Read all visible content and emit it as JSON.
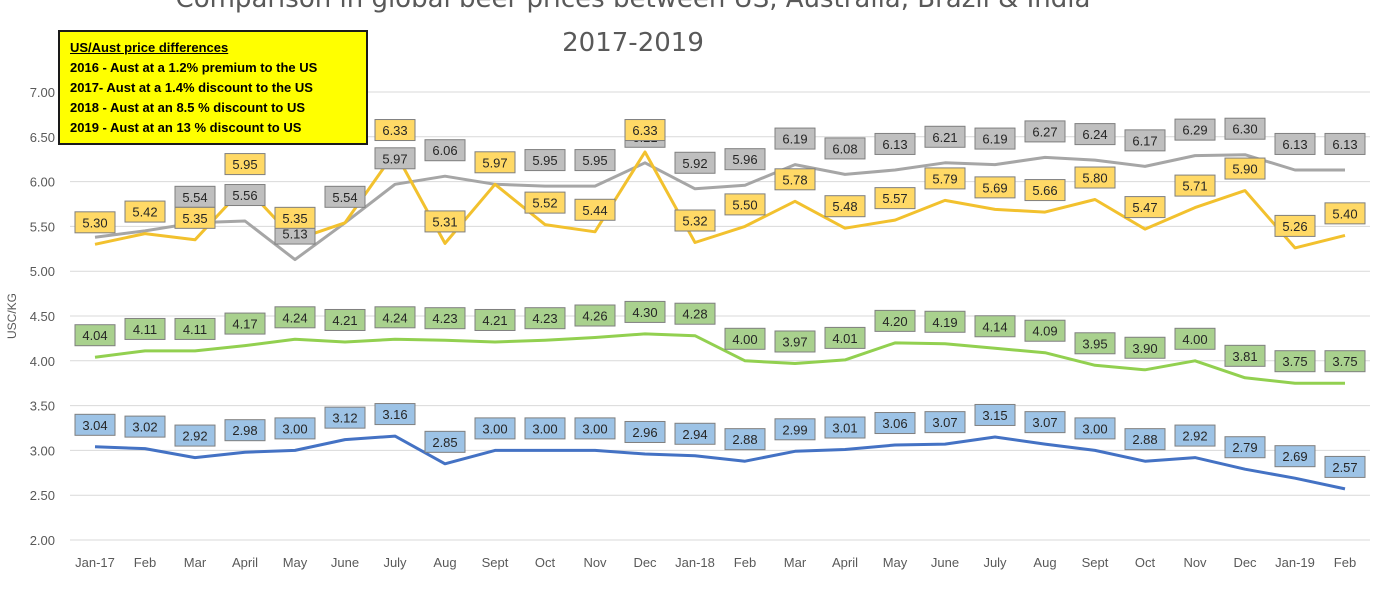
{
  "chart_data": {
    "type": "line",
    "title": "Comparison in global beer prices between US, Australia, Brazil & India",
    "subtitle": "2017-2019",
    "xlabel": "",
    "ylabel": "USC/KG",
    "ylim": [
      2.0,
      7.0
    ],
    "yticks": [
      "7.00",
      "6.50",
      "6.00",
      "5.50",
      "5.00",
      "4.50",
      "4.00",
      "3.50",
      "3.00",
      "2.50",
      "2.00"
    ],
    "grid": true,
    "categories": [
      "Jan-17",
      "Feb",
      "Mar",
      "April",
      "May",
      "June",
      "July",
      "Aug",
      "Sept",
      "Oct",
      "Nov",
      "Dec",
      "Jan-18",
      "Feb",
      "Mar",
      "April",
      "May",
      "June",
      "July",
      "Aug",
      "Sept",
      "Oct",
      "Nov",
      "Dec",
      "Jan-19",
      "Feb"
    ],
    "series": [
      {
        "color": "#a6a6a6",
        "label_fill": "#bfbfbf",
        "values": [
          5.38,
          5.45,
          5.54,
          5.56,
          5.13,
          5.54,
          5.97,
          6.06,
          5.97,
          5.95,
          5.95,
          6.21,
          5.92,
          5.96,
          6.19,
          6.08,
          6.13,
          6.21,
          6.19,
          6.27,
          6.24,
          6.17,
          6.29,
          6.3,
          6.13,
          6.13
        ],
        "labels": [
          "",
          "",
          "5.54",
          "5.56",
          "5.13",
          "5.54",
          "5.97",
          "6.06",
          "",
          "5.95",
          "5.95",
          "6.21",
          "5.92",
          "5.96",
          "6.19",
          "6.08",
          "6.13",
          "6.21",
          "6.19",
          "6.27",
          "6.24",
          "6.17",
          "6.29",
          "6.30",
          "6.13",
          "6.13"
        ]
      },
      {
        "color": "#f2c12e",
        "label_fill": "#ffd966",
        "values": [
          5.3,
          5.42,
          5.35,
          5.95,
          5.35,
          5.54,
          6.33,
          5.31,
          5.97,
          5.52,
          5.44,
          6.33,
          5.32,
          5.5,
          5.78,
          5.48,
          5.57,
          5.79,
          5.69,
          5.66,
          5.8,
          5.47,
          5.71,
          5.9,
          5.26,
          5.4
        ],
        "labels": [
          "5.30",
          "5.42",
          "5.35",
          "5.95",
          "5.35",
          "",
          "6.33",
          "5.31",
          "5.97",
          "5.52",
          "5.44",
          "6.33",
          "5.32",
          "5.50",
          "5.78",
          "5.48",
          "5.57",
          "5.79",
          "5.69",
          "5.66",
          "5.80",
          "5.47",
          "5.71",
          "5.90",
          "5.26",
          "5.40"
        ]
      },
      {
        "color": "#92d050",
        "label_fill": "#a9d18e",
        "values": [
          4.04,
          4.11,
          4.11,
          4.17,
          4.24,
          4.21,
          4.24,
          4.23,
          4.21,
          4.23,
          4.26,
          4.3,
          4.28,
          4.0,
          3.97,
          4.01,
          4.2,
          4.19,
          4.14,
          4.09,
          3.95,
          3.9,
          4.0,
          3.81,
          3.75,
          3.75
        ],
        "labels": [
          "4.04",
          "4.11",
          "4.11",
          "4.17",
          "4.24",
          "4.21",
          "4.24",
          "4.23",
          "4.21",
          "4.23",
          "4.26",
          "4.30",
          "4.28",
          "4.00",
          "3.97",
          "4.01",
          "4.20",
          "4.19",
          "4.14",
          "4.09",
          "3.95",
          "3.90",
          "4.00",
          "3.81",
          "3.75",
          "3.75"
        ]
      },
      {
        "color": "#4472c4",
        "label_fill": "#9dc3e6",
        "values": [
          3.04,
          3.02,
          2.92,
          2.98,
          3.0,
          3.12,
          3.16,
          2.85,
          3.0,
          3.0,
          3.0,
          2.96,
          2.94,
          2.88,
          2.99,
          3.01,
          3.06,
          3.07,
          3.15,
          3.07,
          3.0,
          2.88,
          2.92,
          2.79,
          2.69,
          2.57
        ],
        "labels": [
          "3.04",
          "3.02",
          "2.92",
          "2.98",
          "3.00",
          "3.12",
          "3.16",
          "2.85",
          "3.00",
          "3.00",
          "3.00",
          "2.96",
          "2.94",
          "2.88",
          "2.99",
          "3.01",
          "3.06",
          "3.07",
          "3.15",
          "3.07",
          "3.00",
          "2.88",
          "2.92",
          "2.79",
          "2.69",
          "2.57"
        ]
      }
    ],
    "annotation": {
      "heading": "US/Aust price differences",
      "lines": [
        "2016 - Aust at a 1.2% premium to the US",
        "2017- Aust at a 1.4% discount to the US",
        "2018 - Aust at an 8.5 % discount  to US",
        "2019 - Aust at an 13 % discount to US"
      ]
    }
  }
}
